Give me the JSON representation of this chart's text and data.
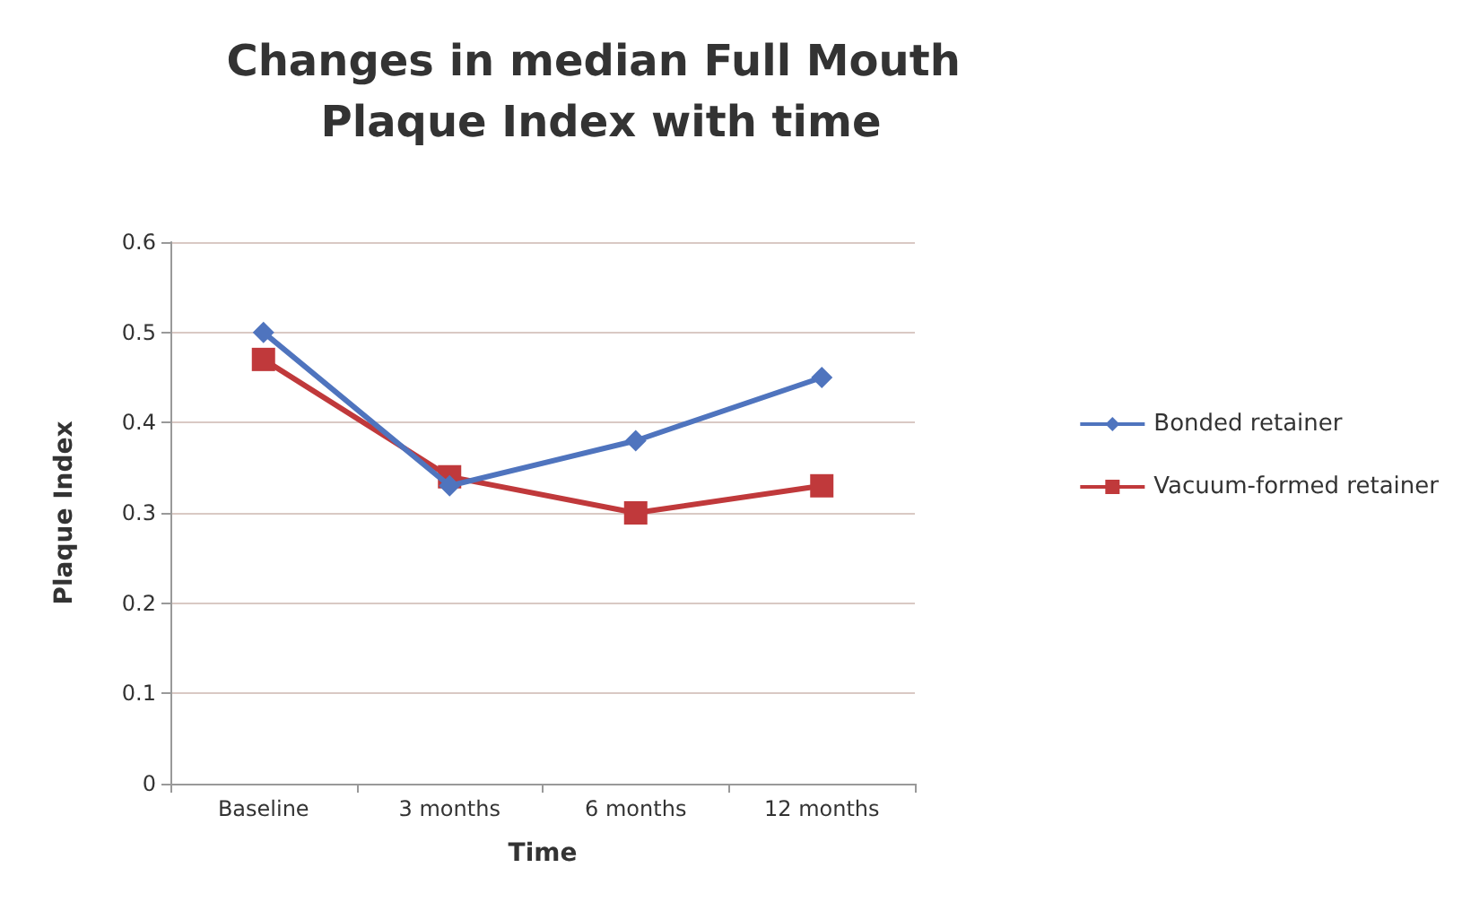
{
  "chart_data": {
    "type": "line",
    "title": "Changes in median Full Mouth Plaque Index with time",
    "xlabel": "Time",
    "ylabel": "Plaque Index",
    "categories": [
      "Baseline",
      "3 months",
      "6 months",
      "12 months"
    ],
    "series": [
      {
        "name": "Bonded retainer",
        "color": "#4f74be",
        "marker": "diamond",
        "values": [
          0.5,
          0.33,
          0.38,
          0.45
        ]
      },
      {
        "name": "Vacuum-formed retainer",
        "color": "#c0393b",
        "marker": "square",
        "values": [
          0.47,
          0.34,
          0.3,
          0.33
        ]
      }
    ],
    "ylim": [
      0,
      0.6
    ],
    "yticks": [
      0,
      0.1,
      0.2,
      0.3,
      0.4,
      0.5,
      0.6
    ],
    "grid": "y",
    "legend": "right"
  }
}
